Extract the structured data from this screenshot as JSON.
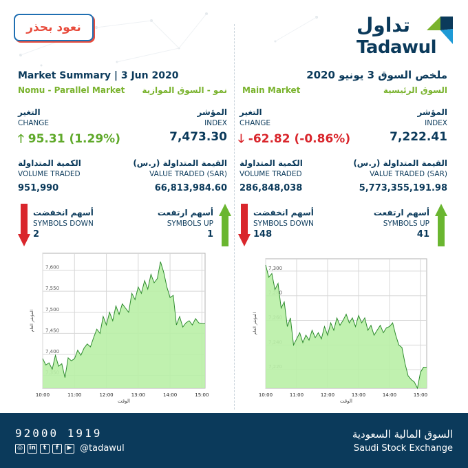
{
  "badge": {
    "text": "نعود بحذر"
  },
  "logo": {
    "arabic": "تداول",
    "english": "Tadawul"
  },
  "nomu": {
    "title_en": "Market Summary | 3 Jun 2020",
    "sub_en": "Nomu - Parallel Market",
    "sub_ar": "نمو - السوق الموازية",
    "change_label_ar": "التغير",
    "change_label_en": "CHANGE",
    "change_value": "95.31 (1.29%)",
    "change_direction": "up",
    "index_label_ar": "المؤشر",
    "index_label_en": "INDEX",
    "index_value": "7,473.30",
    "volume_label_ar": "الكمية المتداولة",
    "volume_label_en": "VOLUME TRADED",
    "volume_value": "951,990",
    "value_label_ar": "القيمة المتداولة (ر.س)",
    "value_label_en": "VALUE TRADED (SAR)",
    "value_value": "66,813,984.60",
    "down_label_ar": "أسهم انخفضت",
    "down_label_en": "SYMBOLS DOWN",
    "down_value": "2",
    "up_label_ar": "أسهم ارتفعت",
    "up_label_en": "SYMBOLS UP",
    "up_value": "1"
  },
  "main": {
    "title_ar": "ملخص السوق 3 يونيو 2020",
    "sub_en": "Main Market",
    "sub_ar": "السوق الرئيسية",
    "change_label_ar": "التغير",
    "change_label_en": "CHANGE",
    "change_value": "-62.82 (-0.86%)",
    "change_direction": "down",
    "index_label_ar": "المؤشر",
    "index_label_en": "INDEX",
    "index_value": "7,222.41",
    "volume_label_ar": "الكمية المتداولة",
    "volume_label_en": "VOLUME TRADED",
    "volume_value": "286,848,038",
    "value_label_ar": "القيمة المتداولة (ر.س)",
    "value_label_en": "VALUE TRADED (SAR)",
    "value_value": "5,773,355,191.98",
    "down_label_ar": "أسهم انخفضت",
    "down_label_en": "SYMBOLS DOWN",
    "down_value": "148",
    "up_label_ar": "أسهم ارتفعت",
    "up_label_en": "SYMBOLS UP",
    "up_value": "41"
  },
  "chart_data": [
    {
      "type": "area",
      "ylabel": "المؤشر العام",
      "xlabel": "الوقت",
      "x_ticks": [
        "10:00",
        "11:00",
        "12:00",
        "13:00",
        "14:00",
        "15:00"
      ],
      "y_ticks": [
        "7,350",
        "7,400",
        "7,450",
        "7,500",
        "7,550",
        "7,600"
      ],
      "ylim": [
        7320,
        7640
      ],
      "xlim": [
        10.0,
        15.1
      ],
      "color": "#b9f0a6",
      "line_color": "#2e8b2e",
      "x": [
        10.0,
        10.1,
        10.2,
        10.3,
        10.4,
        10.5,
        10.6,
        10.7,
        10.8,
        10.9,
        11.0,
        11.1,
        11.2,
        11.3,
        11.4,
        11.5,
        11.6,
        11.7,
        11.8,
        11.9,
        12.0,
        12.1,
        12.2,
        12.3,
        12.4,
        12.5,
        12.6,
        12.7,
        12.8,
        12.9,
        13.0,
        13.1,
        13.2,
        13.3,
        13.4,
        13.5,
        13.6,
        13.7,
        13.8,
        13.9,
        14.0,
        14.1,
        14.2,
        14.3,
        14.4,
        14.5,
        14.6,
        14.7,
        14.8,
        14.9,
        15.0,
        15.1
      ],
      "y": [
        7390,
        7375,
        7380,
        7365,
        7398,
        7372,
        7378,
        7345,
        7392,
        7385,
        7390,
        7410,
        7398,
        7415,
        7425,
        7418,
        7440,
        7460,
        7450,
        7490,
        7470,
        7500,
        7480,
        7515,
        7495,
        7520,
        7510,
        7500,
        7545,
        7530,
        7560,
        7545,
        7575,
        7555,
        7590,
        7570,
        7580,
        7620,
        7595,
        7560,
        7535,
        7540,
        7470,
        7490,
        7465,
        7475,
        7480,
        7470,
        7485,
        7475,
        7473,
        7473
      ]
    },
    {
      "type": "area",
      "ylabel": "المؤشر العام",
      "xlabel": "الوقت",
      "x_ticks": [
        "10:00",
        "11:00",
        "12:00",
        "13:00",
        "14:00",
        "15:00"
      ],
      "y_ticks": [
        "7,220",
        "7,240",
        "7,260",
        "7,280",
        "7,300"
      ],
      "ylim": [
        7205,
        7310
      ],
      "xlim": [
        10.0,
        15.2
      ],
      "color": "#b9f0a6",
      "line_color": "#2e8b2e",
      "x": [
        10.0,
        10.05,
        10.1,
        10.2,
        10.3,
        10.4,
        10.5,
        10.6,
        10.7,
        10.8,
        10.9,
        11.0,
        11.1,
        11.2,
        11.3,
        11.4,
        11.5,
        11.6,
        11.7,
        11.8,
        11.9,
        12.0,
        12.1,
        12.2,
        12.3,
        12.4,
        12.5,
        12.6,
        12.7,
        12.8,
        12.9,
        13.0,
        13.1,
        13.2,
        13.3,
        13.4,
        13.5,
        13.6,
        13.7,
        13.8,
        13.9,
        14.0,
        14.1,
        14.2,
        14.3,
        14.4,
        14.5,
        14.6,
        14.7,
        14.8,
        14.9,
        15.0,
        15.1,
        15.2
      ],
      "y": [
        7305,
        7300,
        7295,
        7298,
        7285,
        7290,
        7270,
        7275,
        7255,
        7262,
        7240,
        7245,
        7250,
        7242,
        7248,
        7244,
        7252,
        7246,
        7250,
        7245,
        7255,
        7248,
        7258,
        7252,
        7262,
        7256,
        7260,
        7265,
        7258,
        7262,
        7255,
        7264,
        7258,
        7262,
        7252,
        7256,
        7248,
        7252,
        7256,
        7250,
        7254,
        7255,
        7258,
        7248,
        7240,
        7238,
        7225,
        7215,
        7212,
        7210,
        7205,
        7218,
        7222,
        7222
      ]
    }
  ]
}
